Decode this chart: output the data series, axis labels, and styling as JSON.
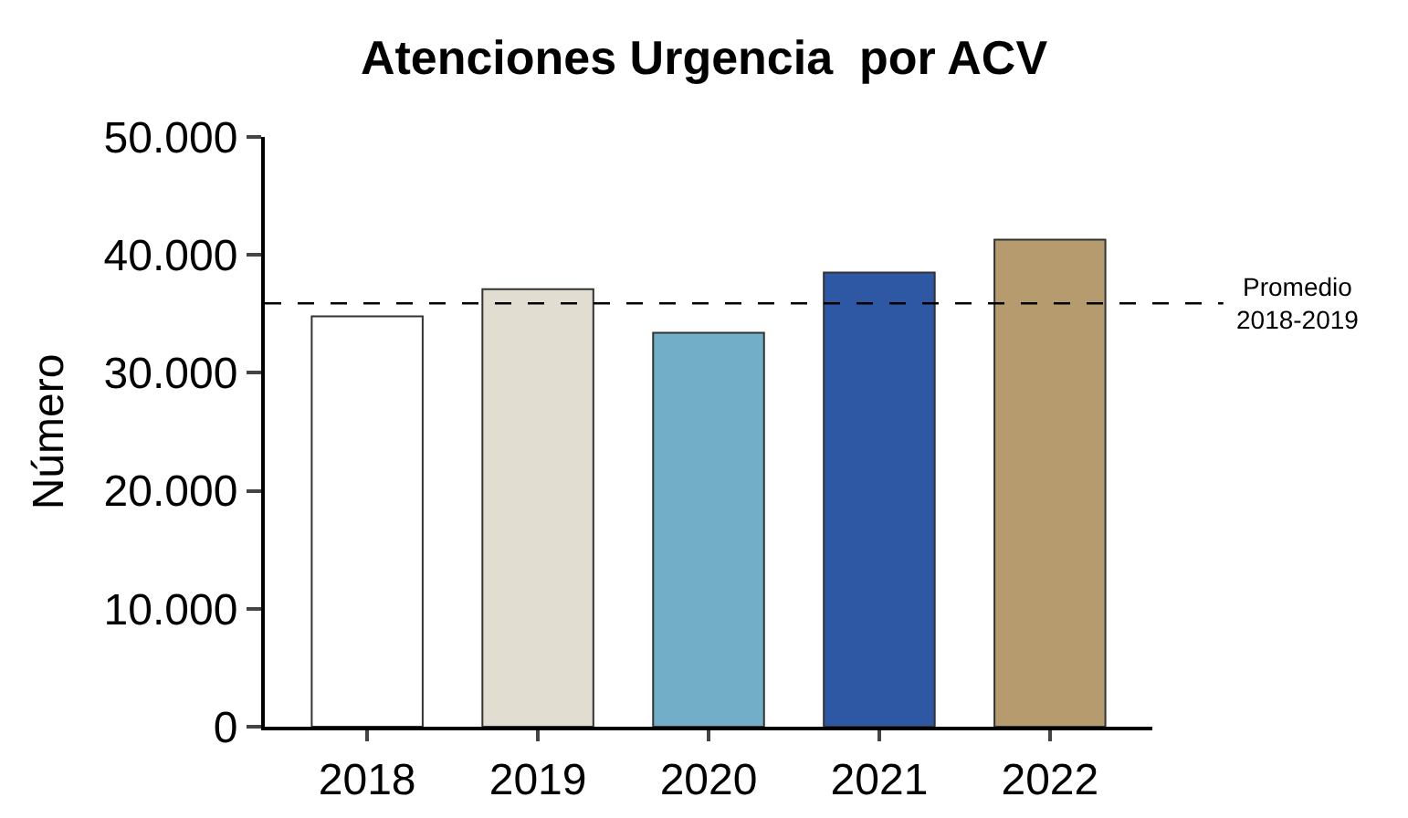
{
  "chart_data": {
    "type": "bar",
    "title": "Atenciones Urgencia  por ACV",
    "ylabel": "Número",
    "categories": [
      "2018",
      "2019",
      "2020",
      "2021",
      "2022"
    ],
    "values": [
      34800,
      37100,
      33400,
      38500,
      41300
    ],
    "colors": [
      "#ffffff",
      "#e2ddd1",
      "#72aec8",
      "#2e58a4",
      "#b59b6e"
    ],
    "ylim": [
      0,
      50000
    ],
    "yticks": [
      {
        "value": 0,
        "label": "0"
      },
      {
        "value": 10000,
        "label": "10.000"
      },
      {
        "value": 20000,
        "label": "20.000"
      },
      {
        "value": 30000,
        "label": "30.000"
      },
      {
        "value": 40000,
        "label": "40.000"
      },
      {
        "value": 50000,
        "label": "50.000"
      }
    ],
    "ref_lines": [
      {
        "axis": "y",
        "value": 35900,
        "label": "Promedio\n2018-2019",
        "line_style": "dashed",
        "color": "#000000"
      }
    ]
  }
}
